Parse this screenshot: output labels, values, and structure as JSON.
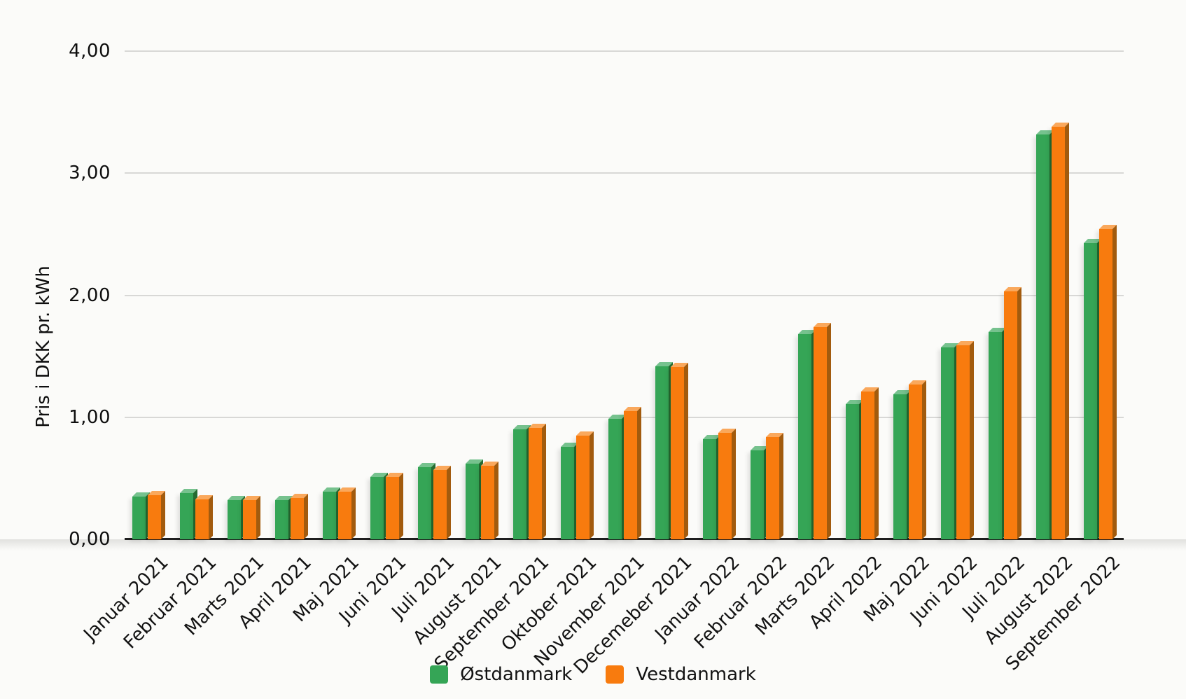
{
  "y_axis": {
    "title": "Pris i DKK pr. kWh",
    "ticks": [
      "4,00",
      "3,00",
      "2,00",
      "1,00",
      "0,00"
    ]
  },
  "chart_data": {
    "type": "bar",
    "title": "",
    "xlabel": "",
    "ylabel": "Pris i DKK pr. kWh",
    "ylim": [
      0,
      4
    ],
    "ytick_step": 1,
    "decimal_separator": ",",
    "grid": true,
    "legend_position": "bottom",
    "bar_style": "3d",
    "categories": [
      "Januar 2021",
      "Februar 2021",
      "Marts 2021",
      "April 2021",
      "Maj 2021",
      "Juni 2021",
      "Juli 2021",
      "August 2021",
      "September 2021",
      "Oktober 2021",
      "November 2021",
      "Decemeber 2021",
      "Januar 2022",
      "Februar 2022",
      "Marts 2022",
      "April 2022",
      "Maj 2022",
      "Juni 2022",
      "Juli 2022",
      "August 2022",
      "September 2022"
    ],
    "series": [
      {
        "name": "Østdanmark",
        "color": "#35a556",
        "color_top": "#76c28e",
        "color_side": "#256b31",
        "values": [
          0.35,
          0.38,
          0.32,
          0.32,
          0.39,
          0.51,
          0.59,
          0.62,
          0.9,
          0.76,
          0.99,
          1.42,
          0.82,
          0.73,
          1.68,
          1.11,
          1.19,
          1.57,
          1.7,
          3.32,
          2.43
        ]
      },
      {
        "name": "Vestdanmark",
        "color": "#f87b0e",
        "color_top": "#faa85c",
        "color_side": "#a25b0e",
        "values": [
          0.36,
          0.33,
          0.32,
          0.34,
          0.39,
          0.51,
          0.57,
          0.6,
          0.91,
          0.85,
          1.05,
          1.41,
          0.87,
          0.84,
          1.74,
          1.21,
          1.27,
          1.59,
          2.03,
          3.38,
          2.54
        ]
      }
    ]
  },
  "colors": {
    "background": "#fbfbf9",
    "gridline": "#d8d8d6",
    "axis_line": "#1f1f1f",
    "text": "#111111"
  }
}
